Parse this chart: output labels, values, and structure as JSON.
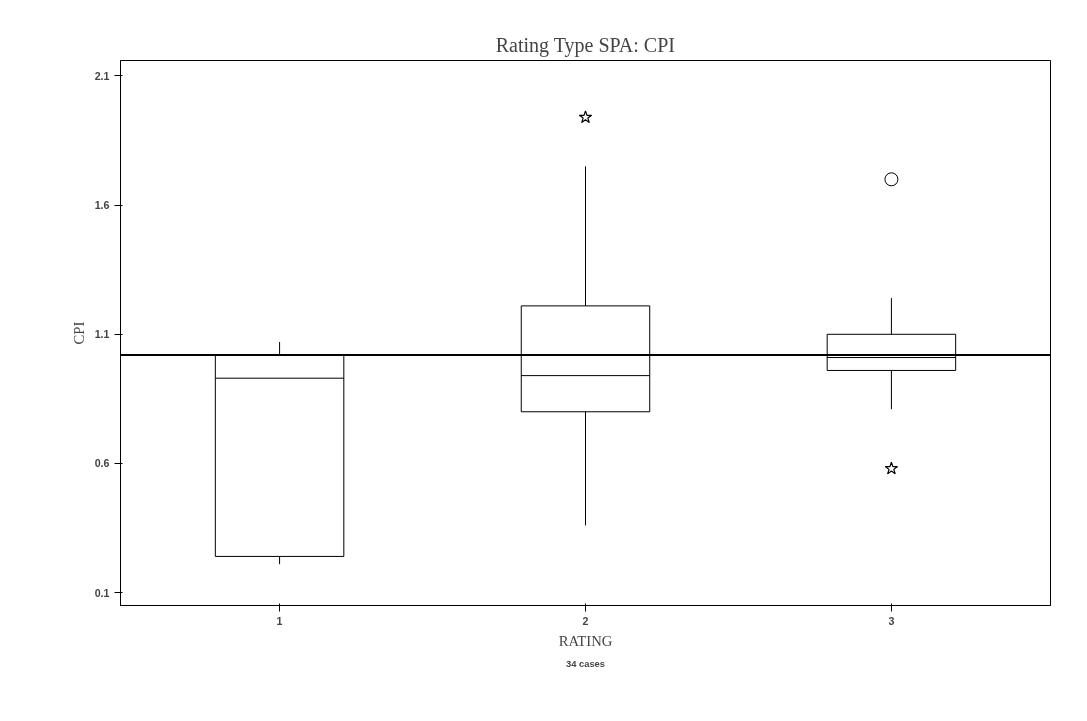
{
  "chart_data": {
    "type": "box",
    "title": "Rating Type SPA: CPI",
    "xlabel": "RATING",
    "ylabel": "CPI",
    "annotations": [
      "34 cases"
    ],
    "categories": [
      "1",
      "2",
      "3"
    ],
    "boxes": [
      {
        "low": 0.21,
        "q1": 0.24,
        "median": 0.93,
        "q3": 1.02,
        "high": 1.07
      },
      {
        "low": 0.36,
        "q1": 0.8,
        "median": 0.94,
        "q3": 1.21,
        "high": 1.75
      },
      {
        "low": 0.81,
        "q1": 0.96,
        "median": 1.01,
        "q3": 1.1,
        "high": 1.24,
        "outliers": [
          1.7
        ]
      }
    ],
    "series": [
      {
        "type": "scatter",
        "marker": "star",
        "color": "#000000",
        "x": [
          "2",
          "3"
        ],
        "values": [
          1.94,
          0.58
        ]
      }
    ],
    "ylim": [
      0.05,
      2.16
    ],
    "yticks": [
      0.1,
      0.6,
      1.1,
      1.6,
      2.1
    ],
    "ref_lines": [
      {
        "axis": "y",
        "value": 1.02,
        "color": "#000000"
      }
    ]
  }
}
